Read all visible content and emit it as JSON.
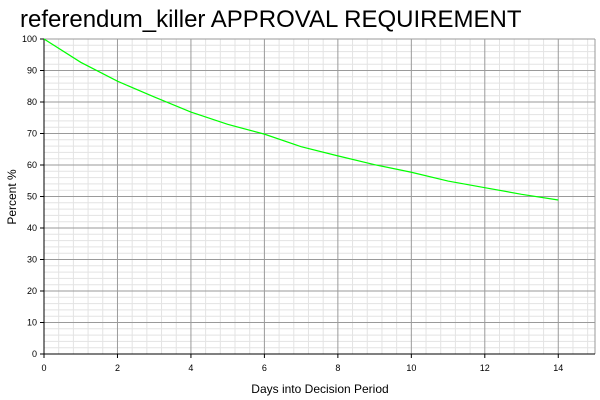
{
  "chart_data": {
    "type": "line",
    "title": "referendum_killer APPROVAL REQUIREMENT",
    "xlabel": "Days into Decision Period",
    "ylabel": "Percent %",
    "xlim": [
      0,
      15
    ],
    "ylim": [
      0,
      100
    ],
    "x_ticks": [
      0,
      2,
      4,
      6,
      8,
      10,
      12,
      14
    ],
    "y_ticks": [
      0,
      10,
      20,
      30,
      40,
      50,
      60,
      70,
      80,
      90,
      100
    ],
    "grid": true,
    "line_color": "#00ff00",
    "series": [
      {
        "x": [
          0,
          1,
          2,
          3,
          4,
          5,
          6,
          7,
          8,
          9,
          10,
          11,
          12,
          13,
          14
        ],
        "values": [
          100,
          92.6,
          86.6,
          81.6,
          76.8,
          72.9,
          69.8,
          65.8,
          62.9,
          60.1,
          57.7,
          54.9,
          52.8,
          50.7,
          48.9
        ]
      }
    ]
  }
}
